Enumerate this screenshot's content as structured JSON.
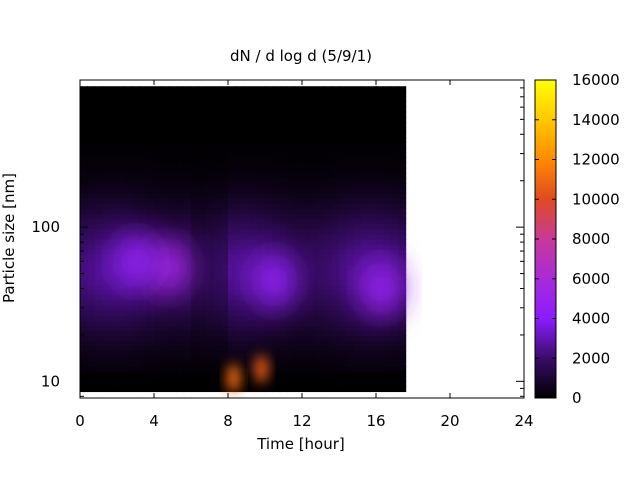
{
  "chart_data": {
    "type": "heatmap",
    "title": "dN / d log d (5/9/1)",
    "xlabel": "Time [hour]",
    "ylabel": "Particle size [nm]",
    "x_range": [
      0,
      24
    ],
    "y_range": [
      7.8,
      900
    ],
    "y_scale": "log",
    "data_x_extent": [
      0,
      17.6
    ],
    "x_ticks": [
      0,
      4,
      8,
      12,
      16,
      20,
      24
    ],
    "x_tick_labels": [
      "0",
      "4",
      "8",
      "12",
      "16",
      "20",
      "24"
    ],
    "y_ticks": [
      10,
      100
    ],
    "y_tick_labels": [
      "10",
      "100"
    ],
    "colorbar": {
      "range": [
        0,
        16000
      ],
      "ticks": [
        0,
        2000,
        4000,
        6000,
        8000,
        10000,
        12000,
        14000,
        16000
      ],
      "tick_labels": [
        "0",
        "2000",
        "4000",
        "6000",
        "8000",
        "10000",
        "12000",
        "14000",
        "16000"
      ],
      "colormap_stops": [
        "#000000",
        "#3a0c6a",
        "#8a1dff",
        "#a92ad8",
        "#c83a9a",
        "#e04a20",
        "#ff8a00",
        "#ffc800",
        "#ffff00"
      ]
    },
    "features": [
      {
        "x": 8.3,
        "y": 10.5,
        "value": 11000
      },
      {
        "x": 9.8,
        "y": 12,
        "value": 10500
      },
      {
        "x": 4.8,
        "y": 55,
        "value": 5500
      },
      {
        "x": 3,
        "y": 60,
        "value": 4500
      },
      {
        "x": 10.5,
        "y": 45,
        "value": 4500
      },
      {
        "x": 16.3,
        "y": 40,
        "value": 4800
      }
    ],
    "grid": false,
    "legend": "colorbar-right"
  }
}
